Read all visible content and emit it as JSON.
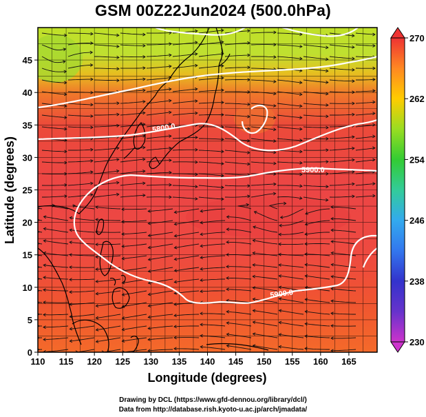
{
  "title": "GSM 00Z22Jun2024 (500.0hPa)",
  "credit_line1": "Drawing by DCL (https://www.gfd-dennou.org/library/dcl/)",
  "credit_line2": "Data from http://database.rish.kyoto-u.ac.jp/arch/jmadata/",
  "map": {
    "lon_range": [
      110,
      170
    ],
    "lat_range": [
      0,
      50
    ],
    "xlabel": "Longitude (degrees)",
    "ylabel": "Latitude  (degrees)",
    "x_ticks": [
      110,
      115,
      120,
      125,
      130,
      135,
      140,
      145,
      150,
      155,
      160,
      165
    ],
    "y_ticks": [
      0,
      5,
      10,
      15,
      20,
      25,
      30,
      35,
      40,
      45
    ],
    "gridlines": true
  },
  "colorbar": {
    "min": 230,
    "max": 270,
    "tick_values": [
      270,
      262,
      254,
      246,
      238,
      230
    ],
    "colors": [
      "#cc33cc",
      "#3333cc",
      "#3399ff",
      "#33cc99",
      "#33cc33",
      "#99dd22",
      "#ffcc00",
      "#ff8800",
      "#ff4422",
      "#ee3333"
    ]
  },
  "contours": [
    {
      "label": "5800.0"
    },
    {
      "label": "5900.0"
    },
    {
      "label": "5900.0"
    }
  ],
  "features": {
    "coastline_color": "#000000",
    "streamline_color": "#111111",
    "contour_color": "#ffffff"
  }
}
